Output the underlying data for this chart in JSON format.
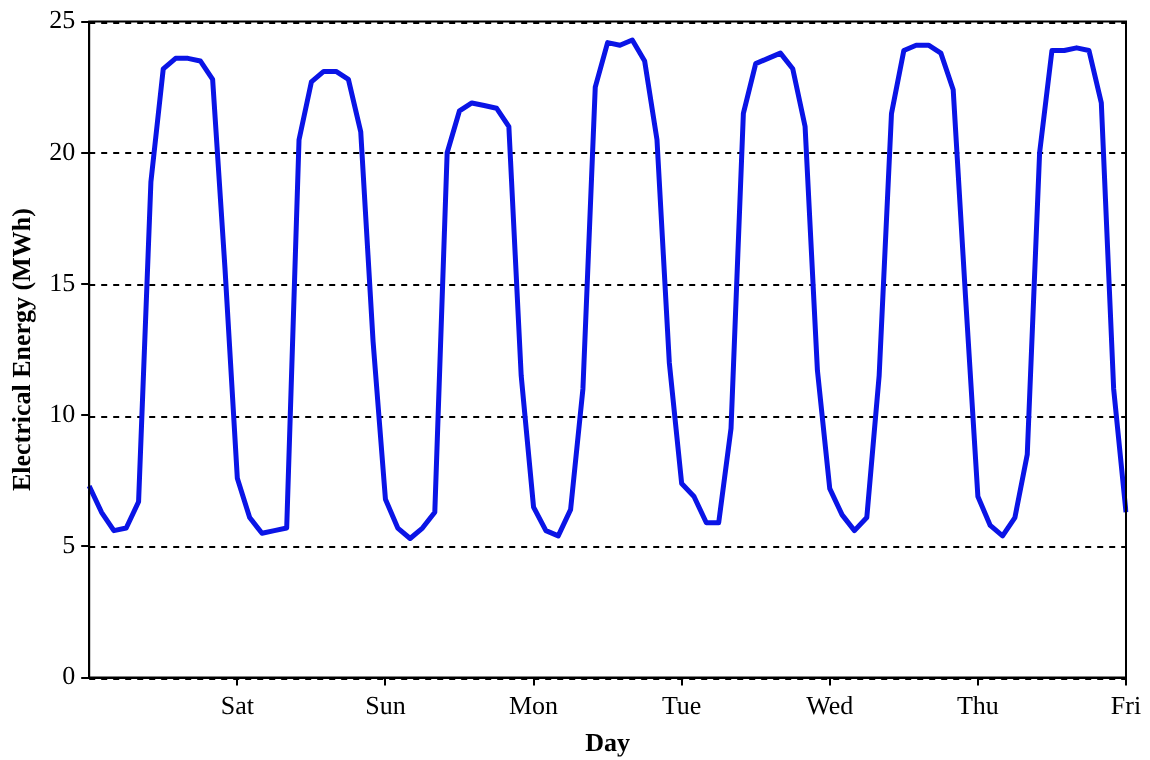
{
  "chart_data": {
    "type": "line",
    "xlabel": "Day",
    "ylabel": "Electrical Energy (MWh)",
    "categories": [
      null,
      null,
      null,
      null,
      null,
      null,
      null,
      null,
      null,
      null,
      null,
      null,
      "Sat",
      null,
      null,
      null,
      null,
      null,
      null,
      null,
      null,
      null,
      null,
      null,
      "Sun",
      null,
      null,
      null,
      null,
      null,
      null,
      null,
      null,
      null,
      null,
      null,
      "Mon",
      null,
      null,
      null,
      null,
      null,
      null,
      null,
      null,
      null,
      null,
      null,
      "Tue",
      null,
      null,
      null,
      null,
      null,
      null,
      null,
      null,
      null,
      null,
      null,
      "Wed",
      null,
      null,
      null,
      null,
      null,
      null,
      null,
      null,
      null,
      null,
      null,
      "Thu",
      null,
      null,
      null,
      null,
      null,
      null,
      null,
      null,
      null,
      null,
      null,
      "Fri"
    ],
    "series": [
      {
        "color": "#0a14e6",
        "values": [
          7.3,
          6.3,
          5.6,
          5.7,
          6.7,
          18.9,
          23.2,
          23.6,
          23.6,
          23.5,
          22.8,
          15.6,
          7.6,
          6.1,
          5.5,
          5.6,
          5.7,
          20.5,
          22.7,
          23.1,
          23.1,
          22.8,
          20.8,
          12.8,
          6.8,
          5.7,
          5.3,
          5.7,
          6.3,
          20.0,
          21.6,
          21.9,
          21.8,
          21.7,
          21.0,
          11.5,
          6.5,
          5.6,
          5.4,
          6.4,
          11.0,
          22.5,
          24.2,
          24.1,
          24.3,
          23.5,
          20.5,
          12.0,
          7.4,
          6.9,
          5.9,
          5.9,
          9.5,
          21.5,
          23.4,
          23.6,
          23.8,
          23.2,
          21.0,
          11.7,
          7.2,
          6.2,
          5.6,
          6.1,
          11.5,
          21.5,
          23.9,
          24.1,
          24.1,
          23.8,
          22.4,
          14.5,
          6.9,
          5.8,
          5.4,
          6.1,
          8.5,
          20.0,
          23.9,
          23.9,
          24.0,
          23.9,
          21.9,
          11.0,
          6.3
        ]
      }
    ],
    "ylim": [
      0,
      25
    ],
    "yticks": [
      0,
      5,
      10,
      15,
      20,
      25
    ],
    "grid": "y",
    "legend": false,
    "marker": "none",
    "line_style": "solid"
  }
}
